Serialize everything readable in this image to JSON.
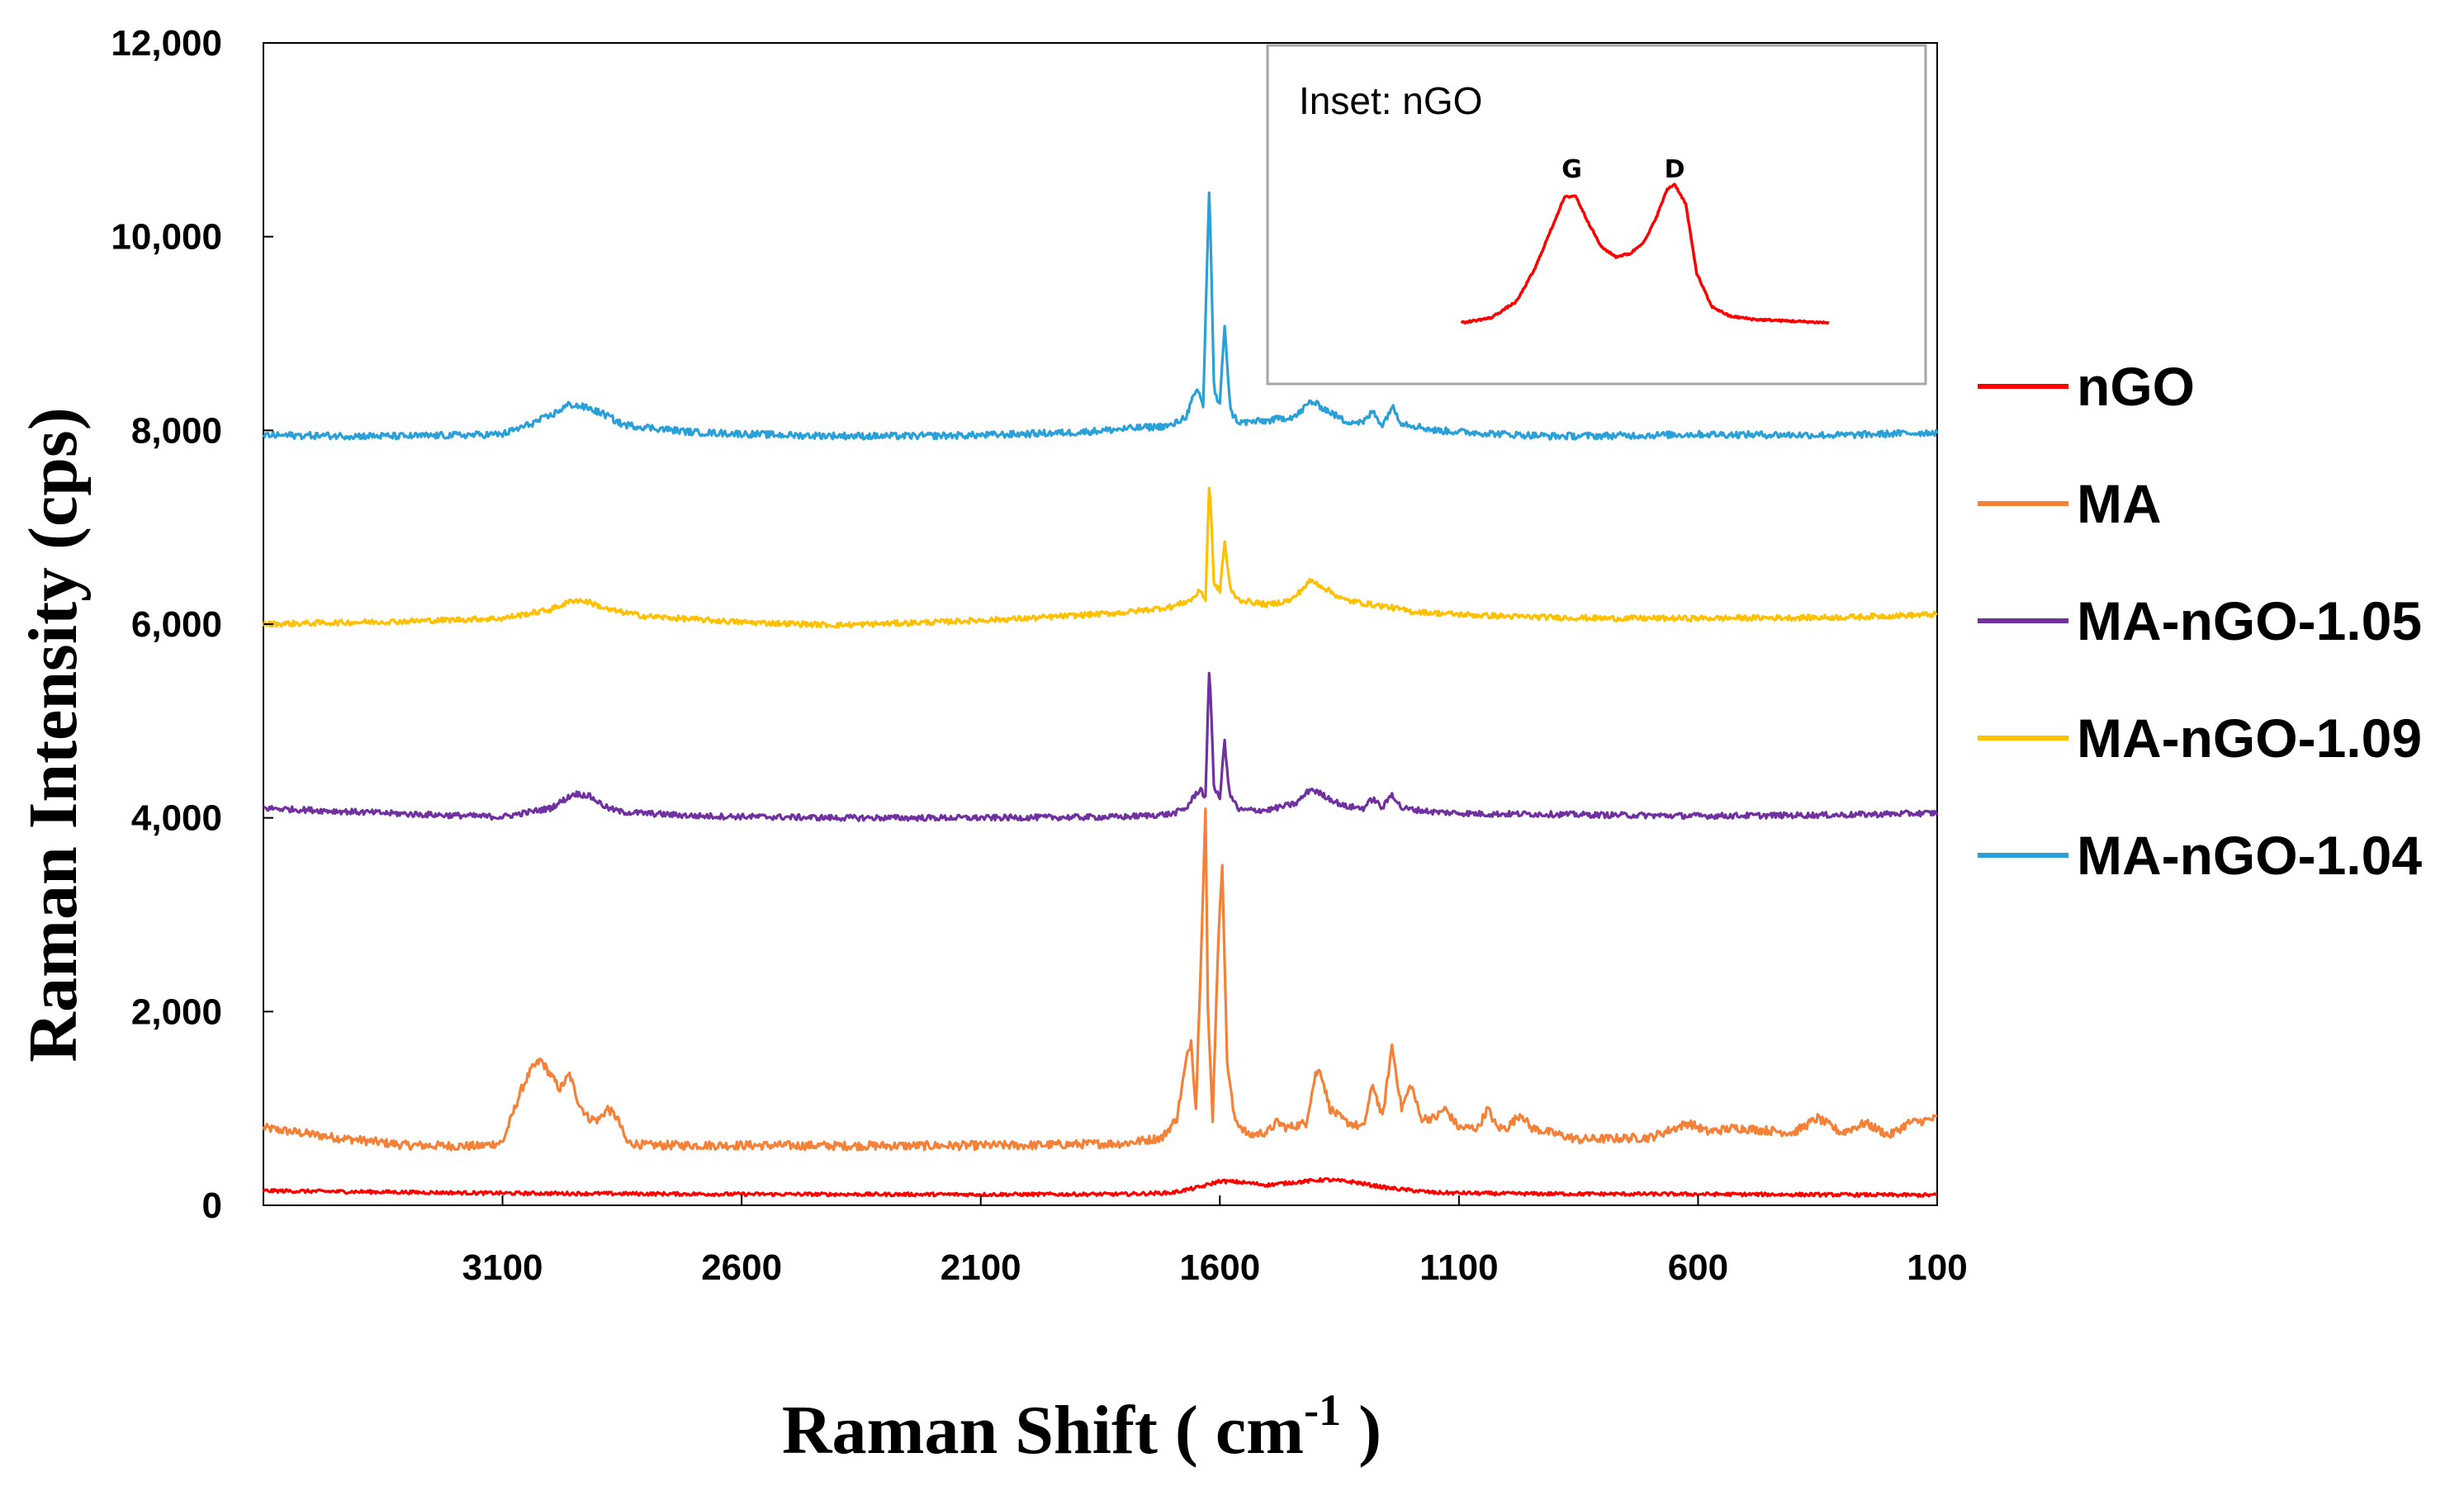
{
  "chart_data": {
    "type": "line",
    "title": "",
    "xlabel": "Raman Shift ( cm",
    "xlabel_sup": "-1",
    "xlabel_close": " )",
    "ylabel": "Raman Intensity (cps)",
    "xlim": [
      3600,
      100
    ],
    "ylim": [
      0,
      12000
    ],
    "x_ticks": [
      3100,
      2600,
      2100,
      1600,
      1100,
      600,
      100
    ],
    "x_tick_labels": [
      "3100",
      "2600",
      "2100",
      "1600",
      "1100",
      "600",
      "100"
    ],
    "y_ticks": [
      0,
      2000,
      4000,
      6000,
      8000,
      10000,
      12000
    ],
    "y_tick_labels": [
      "0",
      "2,000",
      "4,000",
      "6,000",
      "8,000",
      "10,000",
      "12,000"
    ],
    "grid": false,
    "legend_position": "right",
    "series": [
      {
        "name": "nGO",
        "color": "#ff0000",
        "noise": 18,
        "points": [
          [
            3600,
            150
          ],
          [
            3100,
            125
          ],
          [
            2600,
            115
          ],
          [
            2100,
            112
          ],
          [
            1800,
            115
          ],
          [
            1700,
            130
          ],
          [
            1640,
            190
          ],
          [
            1600,
            250
          ],
          [
            1560,
            240
          ],
          [
            1500,
            210
          ],
          [
            1450,
            235
          ],
          [
            1380,
            265
          ],
          [
            1320,
            240
          ],
          [
            1250,
            180
          ],
          [
            1150,
            130
          ],
          [
            1000,
            120
          ],
          [
            600,
            115
          ],
          [
            100,
            105
          ]
        ]
      },
      {
        "name": "MA",
        "color": "#f48137",
        "noise": 45,
        "points": [
          [
            3600,
            800
          ],
          [
            3450,
            700
          ],
          [
            3300,
            620
          ],
          [
            3150,
            610
          ],
          [
            3100,
            650
          ],
          [
            3060,
            1200
          ],
          [
            3040,
            1400
          ],
          [
            3020,
            1500
          ],
          [
            3000,
            1350
          ],
          [
            2980,
            1200
          ],
          [
            2960,
            1350
          ],
          [
            2940,
            1050
          ],
          [
            2920,
            900
          ],
          [
            2900,
            880
          ],
          [
            2880,
            1000
          ],
          [
            2860,
            900
          ],
          [
            2840,
            650
          ],
          [
            2800,
            620
          ],
          [
            2600,
            620
          ],
          [
            2400,
            615
          ],
          [
            2200,
            615
          ],
          [
            2000,
            620
          ],
          [
            1800,
            640
          ],
          [
            1720,
            700
          ],
          [
            1690,
            900
          ],
          [
            1670,
            1500
          ],
          [
            1660,
            1700
          ],
          [
            1650,
            1000
          ],
          [
            1640,
            2500
          ],
          [
            1630,
            4100
          ],
          [
            1625,
            2000
          ],
          [
            1615,
            900
          ],
          [
            1605,
            2500
          ],
          [
            1595,
            3550
          ],
          [
            1585,
            1500
          ],
          [
            1570,
            900
          ],
          [
            1540,
            720
          ],
          [
            1500,
            760
          ],
          [
            1480,
            860
          ],
          [
            1460,
            800
          ],
          [
            1420,
            850
          ],
          [
            1400,
            1350
          ],
          [
            1390,
            1400
          ],
          [
            1370,
            1000
          ],
          [
            1340,
            870
          ],
          [
            1300,
            800
          ],
          [
            1280,
            1250
          ],
          [
            1260,
            900
          ],
          [
            1240,
            1650
          ],
          [
            1220,
            1000
          ],
          [
            1200,
            1250
          ],
          [
            1180,
            900
          ],
          [
            1150,
            900
          ],
          [
            1130,
            1000
          ],
          [
            1100,
            800
          ],
          [
            1060,
            800
          ],
          [
            1040,
            1000
          ],
          [
            1020,
            800
          ],
          [
            1000,
            800
          ],
          [
            970,
            950
          ],
          [
            950,
            800
          ],
          [
            850,
            680
          ],
          [
            700,
            700
          ],
          [
            620,
            850
          ],
          [
            580,
            760
          ],
          [
            520,
            800
          ],
          [
            400,
            750
          ],
          [
            350,
            900
          ],
          [
            300,
            750
          ],
          [
            250,
            850
          ],
          [
            200,
            720
          ],
          [
            160,
            850
          ],
          [
            120,
            880
          ],
          [
            100,
            900
          ]
        ]
      },
      {
        "name": "MA-nGO-1.05",
        "color": "#7030a0",
        "noise": 30,
        "points": [
          [
            3600,
            4100
          ],
          [
            3300,
            4040
          ],
          [
            3100,
            4010
          ],
          [
            3000,
            4100
          ],
          [
            2950,
            4250
          ],
          [
            2920,
            4230
          ],
          [
            2880,
            4100
          ],
          [
            2850,
            4060
          ],
          [
            2700,
            4020
          ],
          [
            2400,
            4000
          ],
          [
            2100,
            4000
          ],
          [
            1800,
            4010
          ],
          [
            1700,
            4040
          ],
          [
            1670,
            4100
          ],
          [
            1650,
            4250
          ],
          [
            1640,
            4300
          ],
          [
            1630,
            4200
          ],
          [
            1622,
            5600
          ],
          [
            1612,
            4300
          ],
          [
            1600,
            4200
          ],
          [
            1590,
            4800
          ],
          [
            1580,
            4250
          ],
          [
            1560,
            4080
          ],
          [
            1500,
            4080
          ],
          [
            1440,
            4150
          ],
          [
            1410,
            4300
          ],
          [
            1390,
            4250
          ],
          [
            1340,
            4120
          ],
          [
            1300,
            4100
          ],
          [
            1280,
            4200
          ],
          [
            1260,
            4100
          ],
          [
            1240,
            4250
          ],
          [
            1220,
            4100
          ],
          [
            1150,
            4060
          ],
          [
            1050,
            4040
          ],
          [
            950,
            4040
          ],
          [
            800,
            4030
          ],
          [
            600,
            4020
          ],
          [
            300,
            4030
          ],
          [
            100,
            4050
          ]
        ]
      },
      {
        "name": "MA-nGO-1.09",
        "color": "#ffc000",
        "noise": 28,
        "points": [
          [
            3600,
            6000
          ],
          [
            3300,
            6030
          ],
          [
            3100,
            6060
          ],
          [
            3000,
            6150
          ],
          [
            2950,
            6250
          ],
          [
            2920,
            6230
          ],
          [
            2880,
            6150
          ],
          [
            2800,
            6080
          ],
          [
            2600,
            6020
          ],
          [
            2400,
            5990
          ],
          [
            2200,
            6020
          ],
          [
            2000,
            6060
          ],
          [
            1800,
            6120
          ],
          [
            1700,
            6180
          ],
          [
            1660,
            6250
          ],
          [
            1640,
            6350
          ],
          [
            1630,
            6250
          ],
          [
            1622,
            7500
          ],
          [
            1612,
            6400
          ],
          [
            1600,
            6350
          ],
          [
            1590,
            6850
          ],
          [
            1578,
            6350
          ],
          [
            1560,
            6250
          ],
          [
            1500,
            6200
          ],
          [
            1450,
            6250
          ],
          [
            1410,
            6450
          ],
          [
            1390,
            6400
          ],
          [
            1340,
            6250
          ],
          [
            1280,
            6200
          ],
          [
            1250,
            6180
          ],
          [
            1200,
            6130
          ],
          [
            1100,
            6100
          ],
          [
            1000,
            6080
          ],
          [
            800,
            6060
          ],
          [
            600,
            6060
          ],
          [
            300,
            6070
          ],
          [
            100,
            6100
          ]
        ]
      },
      {
        "name": "MA-nGO-1.04",
        "color": "#2aa0d8",
        "noise": 35,
        "points": [
          [
            3600,
            7950
          ],
          [
            3300,
            7940
          ],
          [
            3100,
            7960
          ],
          [
            3050,
            8050
          ],
          [
            3000,
            8150
          ],
          [
            2960,
            8270
          ],
          [
            2920,
            8230
          ],
          [
            2880,
            8150
          ],
          [
            2850,
            8060
          ],
          [
            2700,
            7980
          ],
          [
            2500,
            7950
          ],
          [
            2300,
            7940
          ],
          [
            2100,
            7950
          ],
          [
            1900,
            7980
          ],
          [
            1700,
            8050
          ],
          [
            1670,
            8150
          ],
          [
            1655,
            8350
          ],
          [
            1645,
            8400
          ],
          [
            1635,
            8250
          ],
          [
            1622,
            10550
          ],
          [
            1612,
            8400
          ],
          [
            1600,
            8250
          ],
          [
            1590,
            9100
          ],
          [
            1578,
            8200
          ],
          [
            1560,
            8080
          ],
          [
            1500,
            8100
          ],
          [
            1440,
            8150
          ],
          [
            1410,
            8300
          ],
          [
            1390,
            8250
          ],
          [
            1340,
            8100
          ],
          [
            1300,
            8080
          ],
          [
            1280,
            8200
          ],
          [
            1260,
            8050
          ],
          [
            1240,
            8250
          ],
          [
            1220,
            8080
          ],
          [
            1150,
            8000
          ],
          [
            1000,
            7960
          ],
          [
            900,
            7940
          ],
          [
            700,
            7950
          ],
          [
            600,
            7960
          ],
          [
            300,
            7950
          ],
          [
            100,
            7980
          ]
        ]
      }
    ],
    "inset": {
      "title": "Inset: nGO",
      "color": "#ff0000",
      "peak_labels": [
        "G",
        "D"
      ],
      "points": [
        [
          0,
          0.02
        ],
        [
          0.08,
          0.05
        ],
        [
          0.15,
          0.15
        ],
        [
          0.2,
          0.35
        ],
        [
          0.25,
          0.62
        ],
        [
          0.28,
          0.78
        ],
        [
          0.31,
          0.79
        ],
        [
          0.34,
          0.65
        ],
        [
          0.38,
          0.48
        ],
        [
          0.42,
          0.42
        ],
        [
          0.46,
          0.44
        ],
        [
          0.5,
          0.52
        ],
        [
          0.53,
          0.66
        ],
        [
          0.56,
          0.83
        ],
        [
          0.58,
          0.86
        ],
        [
          0.61,
          0.74
        ],
        [
          0.64,
          0.32
        ],
        [
          0.68,
          0.12
        ],
        [
          0.73,
          0.06
        ],
        [
          0.8,
          0.04
        ],
        [
          0.9,
          0.03
        ],
        [
          1,
          0.02
        ]
      ],
      "peak_x": [
        0.3,
        0.58
      ]
    }
  }
}
